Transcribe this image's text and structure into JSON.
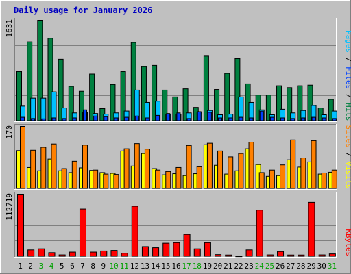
{
  "chart_data": [
    {
      "type": "bar",
      "title": "Daily usage for January 2026",
      "panel": "top",
      "ymax_label": "1631",
      "ylim": [
        0,
        1631
      ],
      "grid": true,
      "legend": [
        "Pages",
        "Files",
        "Hits"
      ],
      "categories": [
        "1",
        "2",
        "3",
        "4",
        "5",
        "6",
        "7",
        "8",
        "9",
        "10",
        "11",
        "12",
        "13",
        "14",
        "15",
        "16",
        "17",
        "18",
        "19",
        "20",
        "21",
        "22",
        "23",
        "24",
        "25",
        "26",
        "27",
        "28",
        "29",
        "30",
        "31"
      ],
      "series": [
        {
          "name": "Hits",
          "color": "#008040",
          "values": [
            800,
            1280,
            1631,
            1340,
            1000,
            560,
            480,
            760,
            200,
            590,
            800,
            1270,
            880,
            900,
            500,
            390,
            520,
            220,
            1050,
            510,
            770,
            1010,
            600,
            420,
            420,
            570,
            540,
            570,
            580,
            210,
            350
          ]
        },
        {
          "name": "Files",
          "color": "#00c0ff",
          "values": [
            240,
            370,
            370,
            470,
            210,
            130,
            140,
            120,
            110,
            130,
            160,
            500,
            300,
            320,
            110,
            110,
            130,
            130,
            170,
            100,
            110,
            390,
            300,
            180,
            100,
            190,
            130,
            170,
            250,
            100,
            160
          ]
        },
        {
          "name": "Pages",
          "color": "#0040ff",
          "values": [
            60,
            40,
            35,
            50,
            40,
            50,
            180,
            80,
            70,
            50,
            60,
            80,
            50,
            90,
            120,
            130,
            40,
            150,
            140,
            50,
            50,
            60,
            50,
            160,
            60,
            50,
            40,
            50,
            60,
            50,
            40
          ]
        }
      ]
    },
    {
      "type": "bar",
      "panel": "middle",
      "ymax_label": "170",
      "ylim": [
        0,
        170
      ],
      "grid": true,
      "legend": [
        "Sites",
        "Visits"
      ],
      "categories": [
        "1",
        "2",
        "3",
        "4",
        "5",
        "6",
        "7",
        "8",
        "9",
        "10",
        "11",
        "12",
        "13",
        "14",
        "15",
        "16",
        "17",
        "18",
        "19",
        "20",
        "21",
        "22",
        "23",
        "24",
        "25",
        "26",
        "27",
        "28",
        "29",
        "30",
        "31"
      ],
      "series": [
        {
          "name": "Visits",
          "color": "#ffff00",
          "values": [
            104,
            58,
            49,
            81,
            49,
            44,
            57,
            50,
            44,
            42,
            103,
            62,
            96,
            55,
            38,
            41,
            36,
            41,
            120,
            64,
            40,
            49,
            109,
            66,
            34,
            36,
            79,
            59,
            73,
            40,
            45
          ]
        },
        {
          "name": "Sites",
          "color": "#ff8000",
          "values": [
            170,
            105,
            113,
            122,
            55,
            75,
            119,
            51,
            40,
            39,
            109,
            123,
            108,
            51,
            47,
            58,
            118,
            60,
            124,
            103,
            87,
            96,
            127,
            44,
            51,
            65,
            133,
            84,
            131,
            43,
            51
          ]
        }
      ]
    },
    {
      "type": "bar",
      "panel": "bottom",
      "ymax_label": "112719",
      "ylim": [
        0,
        112719
      ],
      "grid": true,
      "legend": [
        "KBytes"
      ],
      "categories": [
        "1",
        "2",
        "3",
        "4",
        "5",
        "6",
        "7",
        "8",
        "9",
        "10",
        "11",
        "12",
        "13",
        "14",
        "15",
        "16",
        "17",
        "18",
        "19",
        "20",
        "21",
        "22",
        "23",
        "24",
        "25",
        "26",
        "27",
        "28",
        "29",
        "30",
        "31"
      ],
      "weekend_days": [
        "3",
        "4",
        "10",
        "11",
        "17",
        "18",
        "24",
        "25",
        "31"
      ],
      "series": [
        {
          "name": "KBytes",
          "color": "#ff0000",
          "values": [
            112719,
            12000,
            14000,
            7000,
            3000,
            8000,
            86000,
            8000,
            10000,
            11000,
            6000,
            91000,
            18000,
            16000,
            24000,
            25000,
            40000,
            14000,
            25000,
            3500,
            2800,
            1000,
            12000,
            84000,
            3000,
            9000,
            2800,
            2800,
            98000,
            3000,
            4800
          ]
        }
      ]
    }
  ]
}
